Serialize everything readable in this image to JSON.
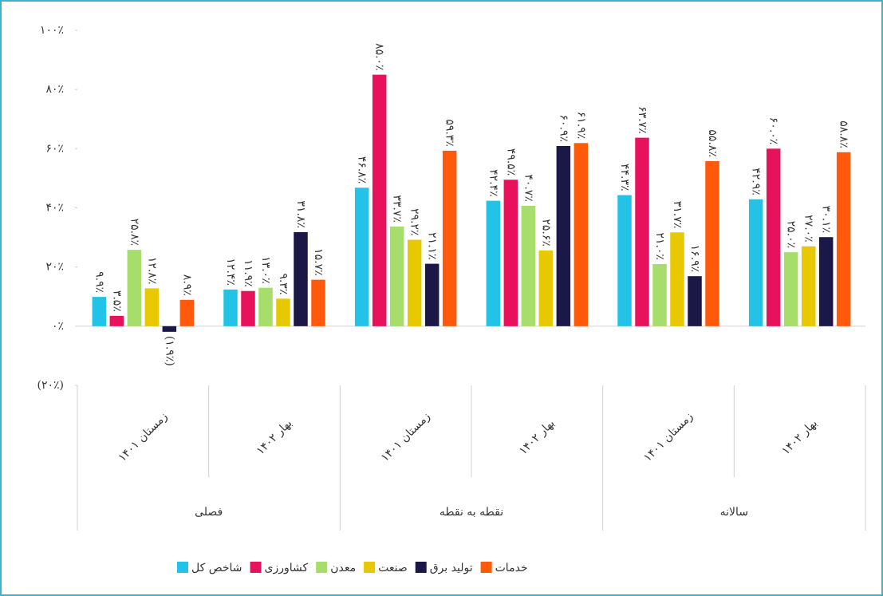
{
  "chart_data": {
    "type": "bar",
    "groups": [
      {
        "name": "فصلی",
        "categories": [
          "زمستان ۱۴۰۱",
          "بهار ۱۴۰۲"
        ]
      },
      {
        "name": "نقطه به نقطه",
        "categories": [
          "زمستان ۱۴۰۱",
          "بهار ۱۴۰۲"
        ]
      },
      {
        "name": "سالانه",
        "categories": [
          "زمستان ۱۴۰۱",
          "بهار ۱۴۰۲"
        ]
      }
    ],
    "series": [
      {
        "name": "شاخص کل",
        "color": "#22c3e6",
        "values": [
          9.9,
          12.4,
          46.8,
          42.4,
          44.3,
          42.9
        ],
        "value_labels": [
          "۹.۹٪",
          "۱۲.۴٪",
          "۴۶.۸٪",
          "۴۲.۴٪",
          "۴۴.۳٪",
          "۴۲.۹٪"
        ]
      },
      {
        "name": "کشاورزی",
        "color": "#e8115c",
        "values": [
          3.5,
          11.9,
          85.0,
          49.5,
          63.7,
          60.0
        ],
        "value_labels": [
          "۳.۵٪",
          "۱۱.۹٪",
          "۸۵.۰٪",
          "۴۹.۵٪",
          "۶۳.۷٪",
          "۶۰.۰٪"
        ]
      },
      {
        "name": "معدن",
        "color": "#a6dd6b",
        "values": [
          25.8,
          13.0,
          33.7,
          40.7,
          21.0,
          25.0
        ],
        "value_labels": [
          "۲۵.۸٪",
          "۱۳.۰٪",
          "۳۳.۷٪",
          "۴۰.۷٪",
          "۲۱.۰٪",
          "۲۵.۰٪"
        ]
      },
      {
        "name": "صنعت",
        "color": "#e8c800",
        "values": [
          12.8,
          9.3,
          29.2,
          25.6,
          31.7,
          27.0
        ],
        "value_labels": [
          "۱۲.۸٪",
          "۹.۳٪",
          "۲۹.۲٪",
          "۲۵.۶٪",
          "۳۱.۷٪",
          "۲۷.۰٪"
        ]
      },
      {
        "name": "تولید برق",
        "color": "#1b1747",
        "values": [
          -1.9,
          31.8,
          21.1,
          60.9,
          16.9,
          30.1
        ],
        "value_labels": [
          "(۱.۹٪)",
          "۳۱.۸٪",
          "۲۱.۱٪",
          "۶۰.۹٪",
          "۱۶.۹٪",
          "۳۰.۱٪"
        ]
      },
      {
        "name": "خدمات",
        "color": "#ff5a0b",
        "values": [
          8.9,
          15.7,
          59.3,
          61.9,
          55.8,
          58.8
        ],
        "value_labels": [
          "۸.۹٪",
          "۱۵.۷٪",
          "۵۹.۳٪",
          "۶۱.۹٪",
          "۵۵.۸٪",
          "۵۸.۸٪"
        ]
      }
    ],
    "ylim": [
      -20,
      100
    ],
    "yticks": [
      {
        "value": -20,
        "label": "(۲۰٪)"
      },
      {
        "value": 0,
        "label": "۰٪"
      },
      {
        "value": 20,
        "label": "۲۰٪"
      },
      {
        "value": 40,
        "label": "۴۰٪"
      },
      {
        "value": 60,
        "label": "۶۰٪"
      },
      {
        "value": 80,
        "label": "۸۰٪"
      },
      {
        "value": 100,
        "label": "۱۰۰٪"
      }
    ],
    "negative_color": "#e00000"
  }
}
